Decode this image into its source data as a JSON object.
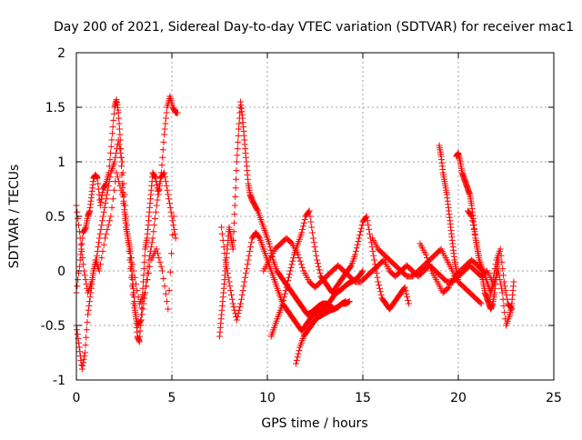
{
  "chart_data": {
    "type": "scatter",
    "title": "Day 200 of 2021, Sidereal Day-to-day VTEC variation (SDTVAR) for receiver mac1",
    "xlabel": "GPS time / hours",
    "ylabel": "SDTVAR / TECUs",
    "xlim": [
      0,
      25
    ],
    "ylim": [
      -1,
      2
    ],
    "xticks": [
      0,
      5,
      10,
      15,
      20,
      25
    ],
    "xtick_labels": [
      "0",
      "5",
      "10",
      "15",
      "20",
      "25"
    ],
    "yticks": [
      -1,
      -0.5,
      0,
      0.5,
      1,
      1.5,
      2
    ],
    "ytick_labels": [
      "-1",
      "-0.5",
      "0",
      "0.5",
      "1",
      "1.5",
      "2"
    ],
    "grid": true,
    "marker": "+",
    "series": [
      {
        "name": "SDTVAR",
        "color": "#ff0000",
        "tracks": [
          {
            "x": [
              0.0,
              0.2,
              0.35,
              0.5,
              0.6,
              0.7,
              0.8,
              0.9,
              1.0,
              1.1,
              1.25,
              1.4,
              1.55,
              1.7,
              1.85,
              2.0,
              2.1,
              2.2,
              2.3,
              2.4,
              2.5,
              2.6,
              2.7,
              2.8,
              2.9,
              3.0,
              3.1,
              3.2,
              3.3,
              3.4,
              3.5,
              3.6,
              3.7,
              3.8,
              3.9,
              4.0,
              4.15,
              4.3,
              4.45,
              4.6,
              4.75,
              4.9,
              5.05,
              5.2,
              5.3
            ],
            "y": [
              -0.2,
              0.1,
              0.35,
              0.4,
              0.5,
              0.55,
              0.7,
              0.85,
              0.88,
              0.85,
              0.6,
              0.75,
              0.8,
              0.9,
              1.2,
              1.5,
              1.57,
              1.45,
              1.2,
              0.8,
              0.6,
              0.4,
              0.3,
              0.2,
              0.0,
              -0.2,
              -0.4,
              -0.6,
              -0.65,
              -0.4,
              -0.1,
              0.2,
              0.3,
              0.5,
              0.7,
              0.9,
              0.85,
              0.7,
              0.9,
              1.25,
              1.5,
              1.6,
              1.5,
              1.45,
              1.45
            ]
          },
          {
            "x": [
              0.0,
              0.15,
              0.3,
              0.45,
              0.6,
              0.75,
              0.9,
              1.05,
              1.2,
              1.4,
              1.6,
              1.8,
              2.0,
              2.2,
              2.4,
              2.6,
              2.8,
              3.0,
              3.2,
              3.4,
              3.6,
              3.8,
              4.0,
              4.2,
              4.4,
              4.6,
              4.8,
              5.0,
              5.2
            ],
            "y": [
              -0.5,
              -0.7,
              -0.9,
              -0.75,
              -0.4,
              -0.2,
              0.0,
              0.1,
              0.3,
              0.5,
              0.7,
              0.9,
              1.0,
              1.2,
              1.0,
              0.5,
              0.1,
              -0.3,
              -0.5,
              -0.45,
              -0.2,
              0.1,
              0.3,
              0.6,
              0.85,
              0.9,
              0.7,
              0.5,
              0.3
            ]
          },
          {
            "x": [
              0.0,
              0.2,
              0.4,
              0.6,
              0.8,
              1.0,
              1.2,
              1.5,
              1.8,
              2.1,
              2.4,
              2.7,
              3.0,
              3.3,
              3.6,
              3.9,
              4.2,
              4.5,
              4.8,
              5.1
            ],
            "y": [
              0.6,
              0.3,
              0.0,
              -0.2,
              -0.1,
              0.1,
              0.0,
              0.3,
              0.5,
              0.9,
              0.7,
              0.3,
              0.0,
              -0.3,
              -0.2,
              0.1,
              0.2,
              0.0,
              -0.35,
              0.5
            ]
          },
          {
            "x": [
              7.5,
              7.6,
              7.7,
              7.8,
              7.9,
              8.0,
              8.1,
              8.2,
              8.3,
              8.4,
              8.5,
              8.6,
              8.7,
              8.8,
              8.9,
              9.0,
              9.1,
              9.2,
              9.35,
              9.5,
              9.7,
              9.9,
              10.1,
              10.3,
              10.5,
              10.7,
              10.9,
              11.1,
              11.3,
              11.5,
              11.7,
              11.9,
              12.1,
              12.3,
              12.5,
              12.7,
              12.9,
              13.1,
              13.3,
              13.5,
              13.7,
              13.9,
              14.1
            ],
            "y": [
              -0.6,
              -0.4,
              -0.2,
              0.0,
              0.2,
              0.4,
              0.3,
              0.2,
              0.6,
              1.0,
              1.3,
              1.55,
              1.4,
              1.2,
              1.0,
              0.8,
              0.7,
              0.65,
              0.6,
              0.55,
              0.45,
              0.35,
              0.25,
              0.1,
              0.0,
              -0.05,
              -0.1,
              -0.15,
              -0.2,
              -0.25,
              -0.3,
              -0.35,
              -0.4,
              -0.38,
              -0.35,
              -0.32,
              -0.3,
              -0.3,
              -0.32,
              -0.35,
              -0.33,
              -0.3,
              -0.28
            ]
          },
          {
            "x": [
              7.6,
              7.8,
              8.0,
              8.2,
              8.4,
              8.6,
              8.8,
              9.0,
              9.2,
              9.4,
              9.6,
              9.8,
              10.0,
              10.2,
              10.4,
              10.6,
              10.8,
              11.0,
              11.2,
              11.4,
              11.6,
              11.8,
              12.0,
              12.2,
              12.4,
              12.6,
              12.8,
              13.0,
              13.2,
              13.4,
              13.6,
              13.8,
              14.0,
              14.2,
              14.4,
              14.6,
              14.8,
              15.0
            ],
            "y": [
              0.4,
              0.1,
              -0.1,
              -0.3,
              -0.45,
              -0.3,
              -0.1,
              0.1,
              0.3,
              0.35,
              0.3,
              0.2,
              0.1,
              0.0,
              -0.1,
              -0.2,
              -0.3,
              -0.35,
              -0.4,
              -0.45,
              -0.5,
              -0.55,
              -0.5,
              -0.45,
              -0.4,
              -0.38,
              -0.36,
              -0.35,
              -0.3,
              -0.25,
              -0.2,
              -0.18,
              -0.15,
              -0.12,
              -0.1,
              -0.08,
              -0.05,
              0.0
            ]
          },
          {
            "x": [
              10.2,
              10.4,
              10.6,
              10.8,
              11.0,
              11.2,
              11.4,
              11.6,
              11.8,
              12.0,
              12.2,
              12.4,
              12.6,
              12.8,
              13.0,
              13.2,
              13.4,
              13.6,
              13.8,
              14.0,
              14.2,
              14.4,
              14.6,
              14.8,
              15.0,
              15.2,
              15.4,
              15.6,
              15.8,
              16.0,
              16.2,
              16.4,
              16.6,
              16.8,
              17.0,
              17.2,
              17.4
            ],
            "y": [
              -0.6,
              -0.5,
              -0.4,
              -0.3,
              -0.15,
              0.0,
              0.15,
              0.25,
              0.35,
              0.5,
              0.55,
              0.3,
              0.1,
              -0.05,
              -0.1,
              -0.15,
              -0.2,
              -0.15,
              -0.1,
              -0.05,
              0.0,
              0.05,
              0.15,
              0.3,
              0.45,
              0.5,
              0.3,
              0.1,
              -0.1,
              -0.25,
              -0.3,
              -0.35,
              -0.3,
              -0.25,
              -0.2,
              -0.15,
              -0.3
            ]
          },
          {
            "x": [
              11.5,
              11.7,
              11.9,
              12.1,
              12.3,
              12.5,
              12.7,
              12.9,
              13.1,
              13.3,
              13.5,
              13.7,
              13.9,
              14.1,
              14.3
            ],
            "y": [
              -0.85,
              -0.7,
              -0.6,
              -0.55,
              -0.5,
              -0.45,
              -0.42,
              -0.4,
              -0.38,
              -0.36,
              -0.35,
              -0.33,
              -0.3,
              -0.3,
              -0.28
            ]
          },
          {
            "x": [
              9.8,
              10.1,
              10.4,
              10.7,
              11.0,
              11.3,
              11.6,
              11.9,
              12.2,
              12.5,
              12.8,
              13.1,
              13.4,
              13.7,
              14.0,
              14.3,
              14.6,
              14.9,
              15.2,
              15.5,
              15.8,
              16.1,
              16.4,
              16.7,
              17.0,
              17.3,
              17.6,
              17.9,
              18.2,
              18.5,
              18.8,
              19.1,
              19.4,
              19.7,
              20.0,
              20.3,
              20.6,
              20.9,
              21.2,
              21.5,
              21.8
            ],
            "y": [
              0.0,
              0.1,
              0.2,
              0.25,
              0.3,
              0.25,
              0.15,
              0.0,
              -0.1,
              -0.15,
              -0.1,
              -0.05,
              0.0,
              0.05,
              0.0,
              -0.05,
              -0.1,
              -0.1,
              -0.05,
              0.0,
              0.05,
              0.1,
              0.0,
              -0.05,
              0.0,
              0.05,
              0.0,
              -0.05,
              0.0,
              0.05,
              0.0,
              -0.05,
              -0.1,
              -0.1,
              -0.05,
              0.0,
              0.05,
              0.0,
              -0.05,
              0.0,
              -0.1
            ]
          },
          {
            "x": [
              15.5,
              15.8,
              16.1,
              16.4,
              16.7,
              17.0,
              17.3,
              17.6,
              17.9,
              18.2,
              18.5,
              18.8,
              19.1,
              19.4,
              19.7,
              20.0,
              20.3,
              20.6,
              20.9,
              21.2
            ],
            "y": [
              0.3,
              0.2,
              0.15,
              0.1,
              0.05,
              0.0,
              -0.05,
              -0.05,
              0.0,
              0.05,
              0.1,
              0.15,
              0.2,
              0.1,
              0.0,
              -0.1,
              -0.15,
              -0.2,
              -0.25,
              -0.3
            ]
          },
          {
            "x": [
              18.0,
              18.3,
              18.6,
              18.9,
              19.2,
              19.5,
              19.8,
              20.1,
              20.4,
              20.7,
              21.0,
              21.3
            ],
            "y": [
              0.25,
              0.15,
              0.0,
              -0.1,
              -0.2,
              -0.15,
              -0.05,
              0.0,
              0.05,
              0.1,
              0.05,
              0.0
            ]
          },
          {
            "x": [
              19.0,
              19.1,
              19.2,
              19.3,
              19.4,
              19.5,
              19.6,
              19.7,
              19.8,
              19.9,
              20.0
            ],
            "y": [
              1.15,
              1.05,
              0.9,
              0.8,
              0.7,
              0.55,
              0.4,
              0.25,
              0.1,
              0.0,
              -0.1
            ]
          },
          {
            "x": [
              19.9,
              20.0,
              20.1,
              20.2,
              20.3,
              20.4,
              20.5,
              20.6,
              20.7,
              20.8,
              20.9,
              21.0,
              21.1,
              21.2,
              21.3,
              21.4,
              21.5,
              21.6,
              21.7,
              21.8,
              21.9,
              22.0,
              22.1
            ],
            "y": [
              1.05,
              1.08,
              1.0,
              0.9,
              0.85,
              0.8,
              0.75,
              0.7,
              0.6,
              0.45,
              0.3,
              0.2,
              0.1,
              0.0,
              -0.1,
              -0.2,
              -0.25,
              -0.3,
              -0.35,
              -0.3,
              -0.2,
              0.0,
              0.1
            ]
          },
          {
            "x": [
              20.5,
              20.7,
              20.9,
              21.1,
              21.3,
              21.5,
              21.7,
              21.9,
              22.1,
              22.3,
              22.5,
              22.7,
              22.8,
              22.9
            ],
            "y": [
              0.55,
              0.5,
              0.3,
              0.1,
              0.0,
              -0.1,
              -0.2,
              -0.1,
              0.0,
              -0.2,
              -0.5,
              -0.4,
              -0.3,
              -0.1
            ]
          },
          {
            "x": [
              21.6,
              21.8,
              22.0,
              22.2,
              22.4,
              22.6,
              22.8
            ],
            "y": [
              -0.3,
              -0.1,
              0.1,
              0.2,
              -0.1,
              -0.3,
              -0.35
            ]
          }
        ]
      }
    ]
  }
}
